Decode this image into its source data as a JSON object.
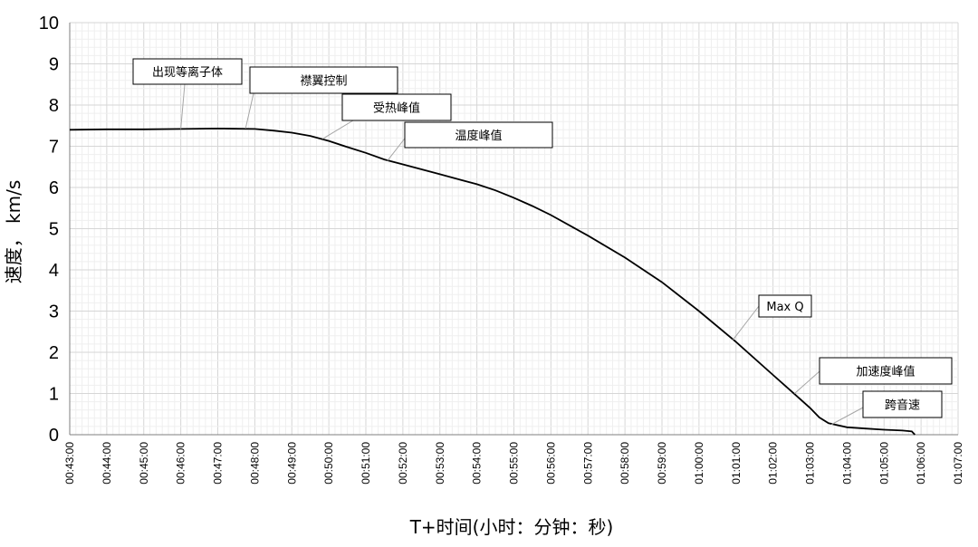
{
  "chart_data": {
    "type": "line",
    "xlabel": "T+时间(小时：分钟：秒)",
    "ylabel": "速度，  km/s",
    "ylim": [
      0,
      10
    ],
    "yticks": [
      0,
      1,
      2,
      3,
      4,
      5,
      6,
      7,
      8,
      9,
      10
    ],
    "xlim": [
      "00:43:00",
      "01:07:00"
    ],
    "xticks": [
      "00:43:00",
      "00:44:00",
      "00:45:00",
      "00:46:00",
      "00:47:00",
      "00:48:00",
      "00:49:00",
      "00:50:00",
      "00:51:00",
      "00:52:00",
      "00:53:00",
      "00:54:00",
      "00:55:00",
      "00:56:00",
      "00:57:00",
      "00:58:00",
      "00:59:00",
      "01:00:00",
      "01:01:00",
      "01:02:00",
      "01:03:00",
      "01:04:00",
      "01:05:00",
      "01:06:00",
      "01:07:00"
    ],
    "grid": true,
    "legend": "none",
    "line_color": "#000000",
    "series": [
      {
        "x": [
          "00:43:00",
          "00:44:00",
          "00:45:00",
          "00:46:00",
          "00:47:00",
          "00:48:00",
          "00:48:30",
          "00:49:00",
          "00:49:30",
          "00:50:00",
          "00:50:30",
          "00:51:00",
          "00:51:30",
          "00:52:00",
          "00:53:00",
          "00:54:00",
          "00:54:30",
          "00:55:00",
          "00:55:30",
          "00:56:00",
          "00:57:00",
          "00:58:00",
          "00:59:00",
          "01:00:00",
          "01:01:00",
          "01:02:00",
          "01:02:30",
          "01:03:00",
          "01:03:15",
          "01:03:30",
          "01:04:00",
          "01:04:30",
          "01:05:00",
          "01:05:30",
          "01:05:45",
          "01:05:50"
        ],
        "y": [
          7.4,
          7.41,
          7.41,
          7.42,
          7.43,
          7.42,
          7.38,
          7.33,
          7.25,
          7.13,
          6.98,
          6.84,
          6.68,
          6.56,
          6.32,
          6.08,
          5.93,
          5.75,
          5.55,
          5.33,
          4.83,
          4.3,
          3.7,
          3.0,
          2.25,
          1.45,
          1.05,
          0.65,
          0.42,
          0.28,
          0.18,
          0.15,
          0.12,
          0.1,
          0.08,
          0.0
        ]
      }
    ],
    "annotations": [
      {
        "text": "出现等离子体",
        "x": "00:46:00",
        "y": 7.42
      },
      {
        "text": "襟翼控制",
        "x": "00:47:45",
        "y": 7.43
      },
      {
        "text": "受热峰值",
        "x": "00:49:50",
        "y": 7.18
      },
      {
        "text": "温度峰值",
        "x": "00:51:35",
        "y": 6.65
      },
      {
        "text": "Max Q",
        "x": "01:00:55",
        "y": 2.3
      },
      {
        "text": "加速度峰值",
        "x": "01:02:35",
        "y": 1.0
      },
      {
        "text": "跨音速",
        "x": "01:03:35",
        "y": 0.25
      }
    ]
  }
}
